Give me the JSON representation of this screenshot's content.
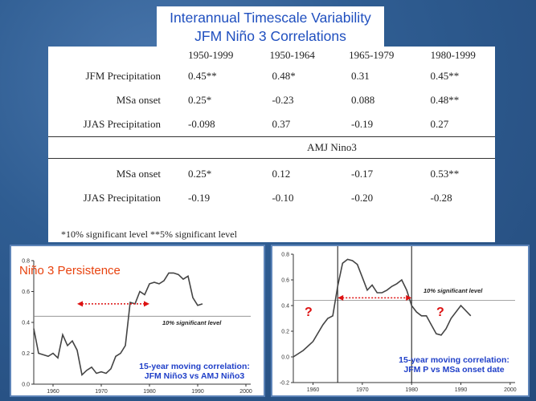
{
  "title": {
    "line1": "Interannual Timescale Variability",
    "line2": "JFM Niño 3 Correlations"
  },
  "table": {
    "columns": [
      "1950-1999",
      "1950-1964",
      "1965-1979",
      "1980-1999"
    ],
    "group1": [
      {
        "label": "JFM Precipitation",
        "values": [
          "0.45**",
          "0.48*",
          "0.31",
          "0.45**"
        ]
      },
      {
        "label": "MSa onset",
        "values": [
          "0.25*",
          "-0.23",
          "0.088",
          "0.48**"
        ]
      },
      {
        "label": "JJAS Precipitation",
        "values": [
          "-0.098",
          "0.37",
          "-0.19",
          "0.27"
        ]
      }
    ],
    "group2_header": "AMJ Nino3",
    "group2": [
      {
        "label": "MSa onset",
        "values": [
          "0.25*",
          "0.12",
          "-0.17",
          "0.53**"
        ]
      },
      {
        "label": "JJAS Precipitation",
        "values": [
          "-0.19",
          "-0.10",
          "-0.20",
          "-0.28"
        ]
      }
    ],
    "note": "*10% significant level  **5% significant level"
  },
  "left_chart": {
    "title": "Niño 3 Persistence",
    "caption_line1": "15-year moving correlation:",
    "caption_line2": "JFM Niño3 vs AMJ Niño3",
    "sig_label": "10% significant level",
    "sig_value": 0.44,
    "yticks": [
      "0.0",
      "0.2",
      "0.4",
      "0.6",
      "0.8"
    ],
    "xticks": [
      "1960",
      "1970",
      "1980",
      "1990",
      "2000"
    ],
    "xlim": [
      1956,
      2001
    ],
    "ylim": [
      0.0,
      0.8
    ],
    "x": [
      1956,
      1957,
      1958,
      1959,
      1960,
      1961,
      1962,
      1963,
      1964,
      1965,
      1966,
      1967,
      1968,
      1969,
      1970,
      1971,
      1972,
      1973,
      1974,
      1975,
      1976,
      1977,
      1978,
      1979,
      1980,
      1981,
      1982,
      1983,
      1984,
      1985,
      1986,
      1987,
      1988,
      1989,
      1990,
      1991
    ],
    "y": [
      0.36,
      0.2,
      0.19,
      0.18,
      0.2,
      0.17,
      0.32,
      0.25,
      0.28,
      0.22,
      0.06,
      0.09,
      0.11,
      0.07,
      0.08,
      0.07,
      0.1,
      0.18,
      0.2,
      0.25,
      0.53,
      0.52,
      0.6,
      0.58,
      0.65,
      0.66,
      0.65,
      0.67,
      0.72,
      0.72,
      0.71,
      0.68,
      0.7,
      0.56,
      0.51,
      0.52
    ],
    "arrow_from": 1965,
    "arrow_to": 1980,
    "arrow_y": 0.52
  },
  "right_chart": {
    "caption_line1": "15-year moving correlation:",
    "caption_line2": "JFM P vs MSa onset date",
    "sig_label": "10% significant level",
    "sig_value": 0.44,
    "question_mark": "?",
    "yticks": [
      "-0.2",
      "0.0",
      "0.2",
      "0.4",
      "0.6",
      "0.8"
    ],
    "xticks": [
      "1960",
      "1970",
      "1980",
      "1990",
      "2000"
    ],
    "xlim": [
      1956,
      2001
    ],
    "ylim": [
      -0.2,
      0.8
    ],
    "x": [
      1956,
      1958,
      1960,
      1962,
      1963,
      1964,
      1965,
      1966,
      1967,
      1968,
      1969,
      1970,
      1971,
      1972,
      1973,
      1974,
      1975,
      1976,
      1977,
      1978,
      1979,
      1980,
      1981,
      1982,
      1983,
      1984,
      1985,
      1986,
      1987,
      1988,
      1990,
      1992
    ],
    "y": [
      0.0,
      0.05,
      0.12,
      0.25,
      0.3,
      0.32,
      0.55,
      0.73,
      0.76,
      0.75,
      0.72,
      0.62,
      0.52,
      0.56,
      0.5,
      0.5,
      0.52,
      0.55,
      0.57,
      0.6,
      0.52,
      0.4,
      0.35,
      0.32,
      0.32,
      0.25,
      0.18,
      0.17,
      0.22,
      0.3,
      0.4,
      0.32
    ],
    "vline_years": [
      1965,
      1980
    ],
    "arrow_from": 1965,
    "arrow_to": 1980,
    "arrow_y": 0.46
  },
  "colors": {
    "title_text": "#1f4fbf",
    "caption_text": "#1f3fc8",
    "persistence_title": "#e8420e",
    "arrow_red": "#dd1111"
  }
}
